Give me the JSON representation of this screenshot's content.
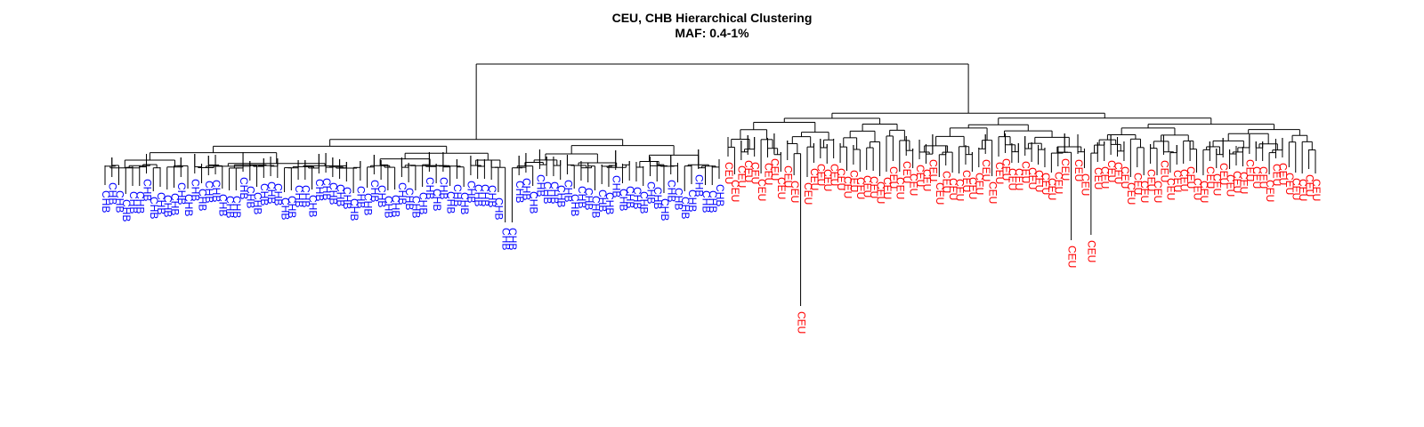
{
  "figure": {
    "title_line1": "CEU, CHB Hierarchical Clustering",
    "title_line2": "MAF: 0.4-1%"
  },
  "dendrogram": {
    "type": "dendrogram",
    "orientation": "leaves-at-bottom",
    "label_rotation": "vertical",
    "groups": [
      {
        "label": "CHB",
        "color": "#0000ff",
        "leaf_count": 90
      },
      {
        "label": "CEU",
        "color": "#ff0000",
        "leaf_count": 90
      }
    ],
    "line_color": "#000000"
  }
}
